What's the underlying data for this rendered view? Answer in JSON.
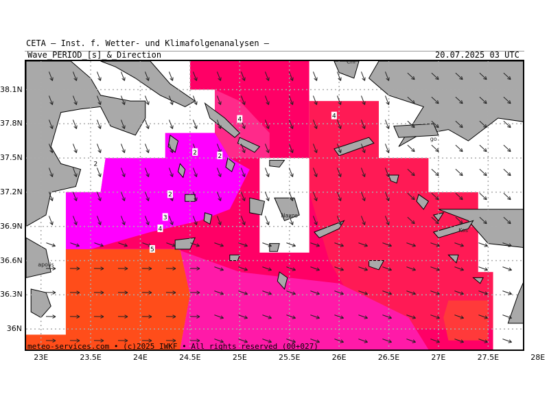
{
  "header": {
    "institute": "CETA — Inst. f. Wetter- und Klimafolgenanalysen —",
    "parameter": "Wave_PERIOD_[s]_&_Direction",
    "timestamp": "20.07.2025 03 UTC"
  },
  "footer": {
    "credit": "meteo-services.com • (c)2025 IWKF • All rights reserved (00+027)"
  },
  "axes": {
    "lat_labels": [
      "38.1N",
      "37.8N",
      "37.5N",
      "37.2N",
      "36.9N",
      "36.6N",
      "36.3N",
      "36N"
    ],
    "lon_labels": [
      "23E",
      "23.5E",
      "24E",
      "24.5E",
      "25E",
      "25.5E",
      "26E",
      "26.5E",
      "27E",
      "27.5E",
      "28E"
    ],
    "lat_values": [
      38.1,
      37.8,
      37.5,
      37.2,
      36.9,
      36.6,
      36.3,
      36.0
    ],
    "lon_values": [
      23.0,
      23.5,
      24.0,
      24.5,
      25.0,
      25.5,
      26.0,
      26.5,
      27.0,
      27.5,
      28.0
    ],
    "lon_range": [
      22.85,
      27.85
    ],
    "lat_range": [
      35.82,
      38.35
    ]
  },
  "places": [
    {
      "name": "Chi",
      "lon": 26.12,
      "lat": 38.33
    },
    {
      "name": "Naxos",
      "lon": 25.5,
      "lat": 36.98
    },
    {
      "name": "Kos",
      "lon": 27.25,
      "lat": 36.85
    },
    {
      "name": "go",
      "lon": 26.95,
      "lat": 37.65
    },
    {
      "name": "apolis",
      "lon": 23.05,
      "lat": 36.55
    }
  ],
  "contour_labels": [
    {
      "text": "4",
      "lon": 25.0,
      "lat": 37.84
    },
    {
      "text": "4",
      "lon": 25.95,
      "lat": 37.87
    },
    {
      "text": "2",
      "lon": 24.55,
      "lat": 37.55
    },
    {
      "text": "2",
      "lon": 24.8,
      "lat": 37.52
    },
    {
      "text": "2",
      "lon": 23.55,
      "lat": 37.45
    },
    {
      "text": "2",
      "lon": 24.3,
      "lat": 37.18
    },
    {
      "text": "3",
      "lon": 24.25,
      "lat": 36.98
    },
    {
      "text": "4",
      "lon": 24.2,
      "lat": 36.88
    },
    {
      "text": "5",
      "lon": 24.12,
      "lat": 36.7
    }
  ],
  "colors": {
    "land": "#a9a9a9",
    "coast": "#000000",
    "grid": "#aaaaaa",
    "period_2": "#ff00ff",
    "period_3": "#ff1aa8",
    "period_4": "#ff0066",
    "period_5": "#ff3a3a",
    "period_6": "#ff4d1a"
  }
}
